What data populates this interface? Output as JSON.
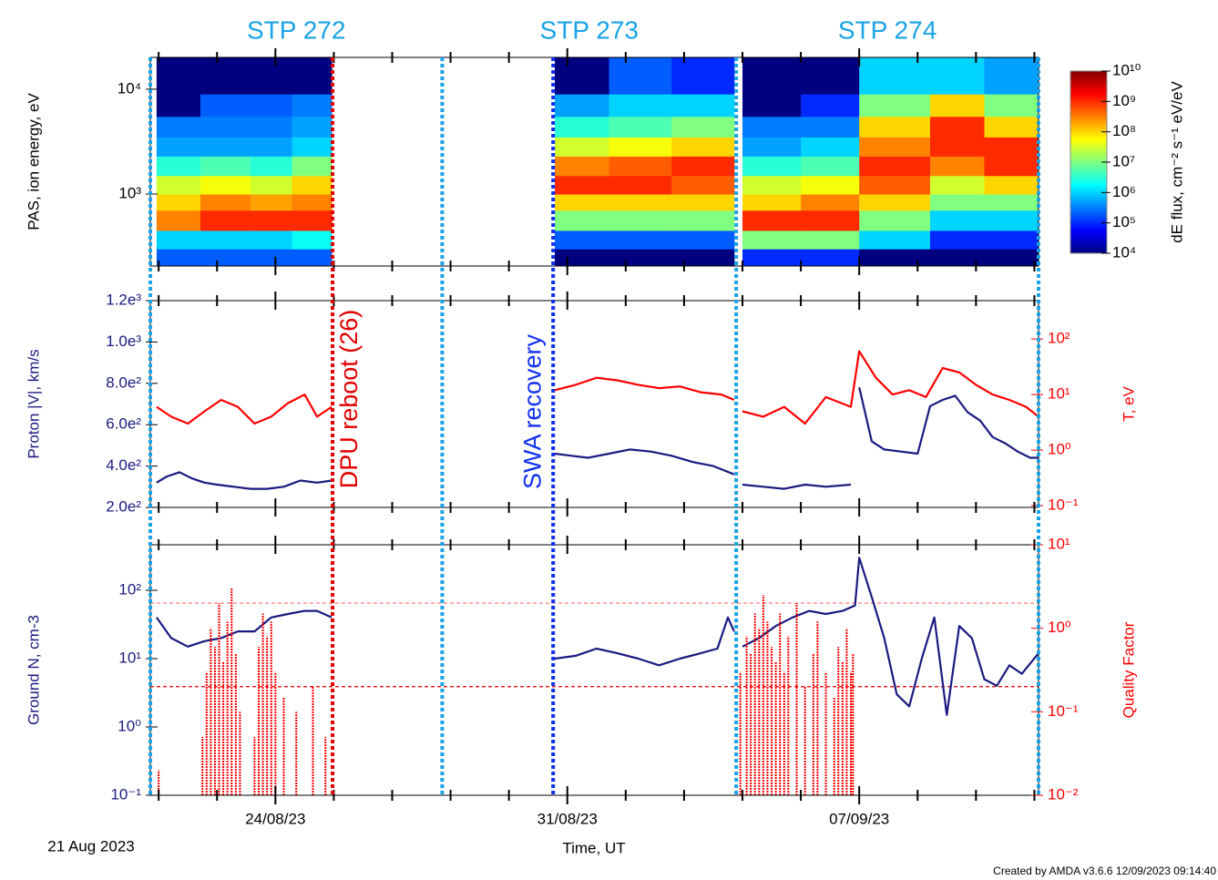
{
  "x_axis": {
    "label": "Time, UT",
    "start": "21 Aug 2023",
    "xlim": [
      0,
      21.3
    ],
    "xticks": [
      {
        "value": 3,
        "label": "24/08/23"
      },
      {
        "value": 10,
        "label": "31/08/23"
      },
      {
        "value": 17,
        "label": "07/09/23"
      }
    ],
    "xminor": [
      0.2,
      1.6,
      4.4,
      5.8,
      7.2,
      8.6,
      11.4,
      12.8,
      14.2,
      15.6,
      18.4,
      19.8,
      21.2
    ]
  },
  "stp_labels": [
    "STP 272",
    "STP 273",
    "STP 274"
  ],
  "vlines": [
    {
      "x": 0,
      "color": "#1aa3e8"
    },
    {
      "x": 7,
      "color": "#1aa3e8"
    },
    {
      "x": 14.05,
      "color": "#1aa3e8"
    },
    {
      "x": 21.3,
      "color": "#1aa3e8"
    },
    {
      "x": 4.37,
      "color": "#e00000",
      "label": "DPU reboot (26)"
    },
    {
      "x": 9.66,
      "color": "#1030f0",
      "label": "SWA recovery"
    }
  ],
  "chart_data": [
    {
      "type": "spectrogram",
      "ylabel": "PAS, ion energy, eV",
      "log_y": true,
      "ylim": [
        206,
        20100
      ],
      "yticks": [
        {
          "value": 1000,
          "label": "10³"
        },
        {
          "value": 10000,
          "label": "10⁴"
        }
      ],
      "spectrogram": {
        "t": [
          [
            0.15,
            1.2
          ],
          [
            1.2,
            2.4
          ],
          [
            2.4,
            3.4
          ],
          [
            3.4,
            4.35
          ],
          [
            9.7,
            11.0
          ],
          [
            11.0,
            12.5
          ],
          [
            12.5,
            14.0
          ],
          [
            14.2,
            15.6
          ],
          [
            15.6,
            17.0
          ],
          [
            17.0,
            18.7
          ],
          [
            18.7,
            20.0
          ],
          [
            20.0,
            21.3
          ]
        ],
        "energy_edges": [
          206,
          300,
          450,
          700,
          1000,
          1500,
          2300,
          3500,
          5500,
          9000,
          20100
        ],
        "flux": [
          [
            200000.0,
            1000000.0,
            300000000.0,
            100000000.0,
            30000000.0,
            3000000.0,
            500000.0,
            300000.0,
            10000.0,
            10000.0
          ],
          [
            200000.0,
            1000000.0,
            1000000000.0,
            300000000.0,
            50000000.0,
            5000000.0,
            500000.0,
            300000.0,
            200000.0,
            10000.0
          ],
          [
            200000.0,
            1000000.0,
            1000000000.0,
            200000000.0,
            30000000.0,
            3000000.0,
            500000.0,
            300000.0,
            200000.0,
            10000.0
          ],
          [
            200000.0,
            2000000.0,
            1000000000.0,
            300000000.0,
            100000000.0,
            10000000.0,
            1000000.0,
            500000.0,
            300000.0,
            10000.0
          ],
          [
            10000.0,
            200000.0,
            10000000.0,
            100000000.0,
            1000000000.0,
            300000000.0,
            30000000.0,
            3000000.0,
            500000.0,
            10000.0
          ],
          [
            10000.0,
            200000.0,
            10000000.0,
            100000000.0,
            1000000000.0,
            500000000.0,
            50000000.0,
            5000000.0,
            1000000.0,
            200000.0
          ],
          [
            10000.0,
            200000.0,
            10000000.0,
            100000000.0,
            500000000.0,
            1000000000.0,
            100000000.0,
            10000000.0,
            1000000.0,
            100000.0
          ],
          [
            100000.0,
            10000000.0,
            1000000000.0,
            100000000.0,
            30000000.0,
            3000000.0,
            500000.0,
            300000.0,
            10000.0,
            10000.0
          ],
          [
            100000.0,
            10000000.0,
            1000000000.0,
            300000000.0,
            50000000.0,
            5000000.0,
            1000000.0,
            300000.0,
            100000.0,
            10000.0
          ],
          [
            10000.0,
            1000000.0,
            10000000.0,
            100000000.0,
            500000000.0,
            1000000000.0,
            300000000.0,
            100000000.0,
            10000000.0,
            1000000.0
          ],
          [
            10000.0,
            100000.0,
            1000000.0,
            10000000.0,
            30000000.0,
            300000000.0,
            1000000000.0,
            1000000000.0,
            100000000.0,
            1000000.0
          ],
          [
            10000.0,
            100000.0,
            1000000.0,
            10000000.0,
            100000000.0,
            1000000000.0,
            1000000000.0,
            100000000.0,
            10000000.0,
            500000.0
          ]
        ]
      },
      "colorbar": {
        "label": "dE flux, cm⁻² s⁻¹ eV/eV",
        "colormap": "jet",
        "zlim": [
          10000.0,
          10000000000.0
        ],
        "ticks": [
          {
            "value": 10000.0,
            "label": "10⁴"
          },
          {
            "value": 100000.0,
            "label": "10⁵"
          },
          {
            "value": 1000000.0,
            "label": "10⁶"
          },
          {
            "value": 10000000.0,
            "label": "10⁷"
          },
          {
            "value": 100000000.0,
            "label": "10⁸"
          },
          {
            "value": 1000000000.0,
            "label": "10⁹"
          },
          {
            "value": 10000000000.0,
            "label": "10¹⁰"
          }
        ]
      }
    },
    {
      "type": "line",
      "ylabel": "Proton |V|, km/s",
      "y2label": "T, eV",
      "ylim": [
        200,
        1200
      ],
      "yticks": [
        {
          "value": 200,
          "label": "2.0e²"
        },
        {
          "value": 400,
          "label": "4.0e²"
        },
        {
          "value": 600,
          "label": "6.0e²"
        },
        {
          "value": 800,
          "label": "8.0e²"
        },
        {
          "value": 1000,
          "label": "1.0e³"
        },
        {
          "value": 1200,
          "label": "1.2e³"
        }
      ],
      "log_y2": true,
      "y2lim": [
        0.093,
        490
      ],
      "y2ticks": [
        {
          "value": 0.1,
          "label": "10⁻¹"
        },
        {
          "value": 1,
          "label": "10⁰"
        },
        {
          "value": 10,
          "label": "10¹"
        },
        {
          "value": 100,
          "label": "10²"
        }
      ],
      "series": [
        {
          "color": "#1a1a80",
          "x": [
            0.15,
            0.4,
            0.7,
            1.0,
            1.3,
            1.6,
            2.0,
            2.4,
            2.8,
            3.2,
            3.6,
            4.0,
            4.35,
            7,
            9.7,
            10.1,
            10.5,
            11.0,
            11.5,
            12.0,
            12.5,
            13.0,
            13.5,
            14.0,
            14.1,
            14.2,
            14.7,
            15.2,
            15.7,
            16.2,
            16.8,
            16.9,
            17.0,
            17.3,
            17.6,
            18.0,
            18.4,
            18.7,
            19.0,
            19.3,
            19.6,
            19.9,
            20.2,
            20.5,
            20.8,
            21.1,
            21.3
          ],
          "values": [
            320,
            350,
            370,
            340,
            320,
            310,
            300,
            290,
            290,
            300,
            330,
            320,
            330,
            null,
            460,
            450,
            440,
            460,
            480,
            470,
            450,
            420,
            400,
            360,
            null,
            310,
            300,
            290,
            310,
            300,
            310,
            null,
            780,
            520,
            480,
            470,
            460,
            690,
            720,
            740,
            660,
            620,
            540,
            510,
            470,
            440,
            440
          ]
        },
        {
          "color": "#ff0000",
          "axis": "y2",
          "x": [
            0.15,
            0.5,
            0.9,
            1.3,
            1.7,
            2.1,
            2.5,
            2.9,
            3.3,
            3.7,
            4.0,
            4.35,
            7,
            9.7,
            10.2,
            10.7,
            11.2,
            11.7,
            12.2,
            12.7,
            13.2,
            13.7,
            14.0,
            14.1,
            14.2,
            14.7,
            15.2,
            15.7,
            16.2,
            16.8,
            17.0,
            17.4,
            17.8,
            18.2,
            18.6,
            19.0,
            19.4,
            19.8,
            20.2,
            20.6,
            21.0,
            21.3
          ],
          "values": [
            6,
            4,
            3,
            5,
            8,
            6,
            3,
            4,
            7,
            10,
            4,
            6,
            null,
            12,
            15,
            20,
            18,
            15,
            13,
            14,
            11,
            10,
            8,
            null,
            5,
            4,
            6,
            3,
            9,
            6,
            60,
            20,
            10,
            12,
            9,
            30,
            25,
            15,
            10,
            8,
            6,
            4
          ]
        }
      ]
    },
    {
      "type": "line",
      "ylabel": "Ground N, cm-3",
      "y2label": "Quality Factor",
      "log_y": true,
      "ylim": [
        0.1,
        464
      ],
      "yticks": [
        {
          "value": 0.1,
          "label": "10⁻¹"
        },
        {
          "value": 1,
          "label": "10⁰"
        },
        {
          "value": 10,
          "label": "10¹"
        },
        {
          "value": 100,
          "label": "10²"
        }
      ],
      "log_y2": true,
      "y2lim": [
        0.01,
        10
      ],
      "y2ticks": [
        {
          "value": 0.01,
          "label": "10⁻²"
        },
        {
          "value": 0.1,
          "label": "10⁻¹"
        },
        {
          "value": 1,
          "label": "10⁰"
        },
        {
          "value": 10,
          "label": "10¹"
        }
      ],
      "hlines": [
        {
          "y": 2,
          "axis": "y2",
          "color": "#ff7070"
        },
        {
          "y": 0.2,
          "axis": "y2",
          "color": "#e00000"
        }
      ],
      "series": [
        {
          "color": "#1a1a80",
          "x": [
            0.15,
            0.5,
            0.9,
            1.3,
            1.7,
            2.1,
            2.5,
            2.9,
            3.3,
            3.7,
            4.0,
            4.35,
            7,
            9.7,
            10.2,
            10.7,
            11.2,
            11.7,
            12.2,
            12.7,
            13.2,
            13.6,
            13.85,
            14.0,
            14.1,
            14.2,
            14.6,
            15.0,
            15.4,
            15.8,
            16.2,
            16.6,
            16.9,
            17.0,
            17.3,
            17.6,
            17.9,
            18.2,
            18.5,
            18.8,
            19.1,
            19.4,
            19.7,
            20.0,
            20.3,
            20.6,
            20.9,
            21.3
          ],
          "values": [
            40,
            20,
            15,
            18,
            20,
            25,
            25,
            40,
            45,
            50,
            50,
            40,
            null,
            10,
            11,
            14,
            12,
            10,
            8,
            10,
            12,
            14,
            40,
            25,
            null,
            15,
            20,
            30,
            40,
            50,
            45,
            50,
            60,
            300,
            80,
            20,
            3,
            2,
            10,
            40,
            1.5,
            30,
            20,
            5,
            4,
            8,
            6,
            12
          ]
        },
        {
          "color": "#ff0000",
          "axis": "y2",
          "style": "sticks",
          "x": [
            0.2,
            1.25,
            1.35,
            1.45,
            1.55,
            1.65,
            1.75,
            1.85,
            1.95,
            2.05,
            2.15,
            2.5,
            2.6,
            2.7,
            2.8,
            2.9,
            3.0,
            3.2,
            3.5,
            3.9,
            4.2,
            14.15,
            14.3,
            14.4,
            14.5,
            14.6,
            14.7,
            14.8,
            14.9,
            15.0,
            15.1,
            15.2,
            15.3,
            15.5,
            15.7,
            15.9,
            16.0,
            16.2,
            16.4,
            16.5,
            16.6,
            16.7,
            16.8,
            16.85
          ],
          "values": [
            0.02,
            0.05,
            0.3,
            1.0,
            0.6,
            2.0,
            0.4,
            1.2,
            3.0,
            0.5,
            0.1,
            0.05,
            0.6,
            1.5,
            0.8,
            1.2,
            0.3,
            0.15,
            0.1,
            0.2,
            0.05,
            0.3,
            0.8,
            0.5,
            1.5,
            1.0,
            2.5,
            1.2,
            0.6,
            0.4,
            1.5,
            0.3,
            0.8,
            2.0,
            0.2,
            0.5,
            1.2,
            0.3,
            0.15,
            0.6,
            0.4,
            1.0,
            0.3,
            0.5
          ]
        }
      ]
    }
  ],
  "footer": "Created by AMDA v3.6.6 12/09/2023 09:14:40"
}
